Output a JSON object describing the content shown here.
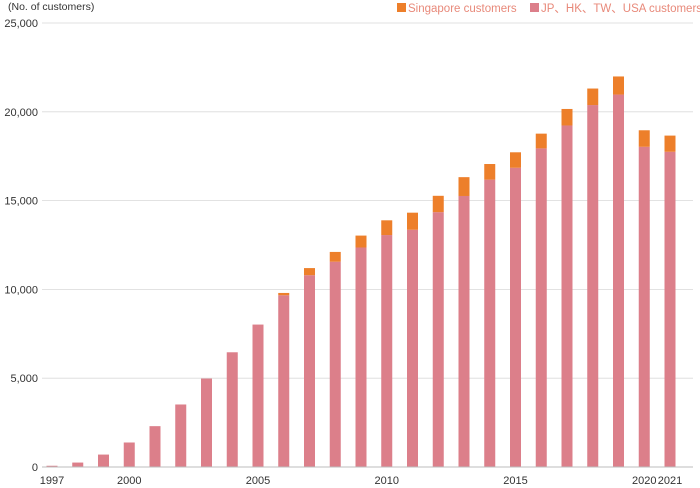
{
  "chart_data": {
    "type": "bar",
    "stacked": true,
    "ylabel": "(No. of customers)",
    "ylim": [
      0,
      25000
    ],
    "yticks": [
      0,
      5000,
      10000,
      15000,
      20000,
      25000
    ],
    "ytick_labels": [
      "0",
      "5,000",
      "10,000",
      "15,000",
      "20,000",
      "25,000"
    ],
    "categories": [
      "1997",
      "1998",
      "1999",
      "2000",
      "2001",
      "2002",
      "2003",
      "2004",
      "2005",
      "2006",
      "2007",
      "2008",
      "2009",
      "2010",
      "2011",
      "2012",
      "2013",
      "2014",
      "2015",
      "2016",
      "2017",
      "2018",
      "2019",
      "2020",
      "2021"
    ],
    "xtick_labels": [
      "1997",
      "",
      "",
      "2000",
      "",
      "",
      "",
      "",
      "2005",
      "",
      "",
      "",
      "",
      "2010",
      "",
      "",
      "",
      "",
      "2015",
      "",
      "",
      "",
      "",
      "2020",
      "2021"
    ],
    "series": [
      {
        "name": "JP、HK、TW、USA customers",
        "color": "#dc7f8a",
        "values": [
          70,
          250,
          700,
          1380,
          2300,
          3520,
          4980,
          6460,
          8020,
          9670,
          10800,
          11560,
          12360,
          13060,
          13360,
          14350,
          15260,
          16180,
          16850,
          17940,
          19230,
          20380,
          20970,
          18030,
          17750
        ]
      },
      {
        "name": "Singapore customers",
        "color": "#ed7f2a",
        "values": [
          0,
          0,
          0,
          0,
          0,
          0,
          0,
          0,
          0,
          130,
          400,
          550,
          670,
          830,
          960,
          920,
          1060,
          880,
          870,
          830,
          930,
          930,
          1020,
          930,
          910
        ]
      }
    ],
    "grid": true,
    "legend_position": "top-right"
  }
}
